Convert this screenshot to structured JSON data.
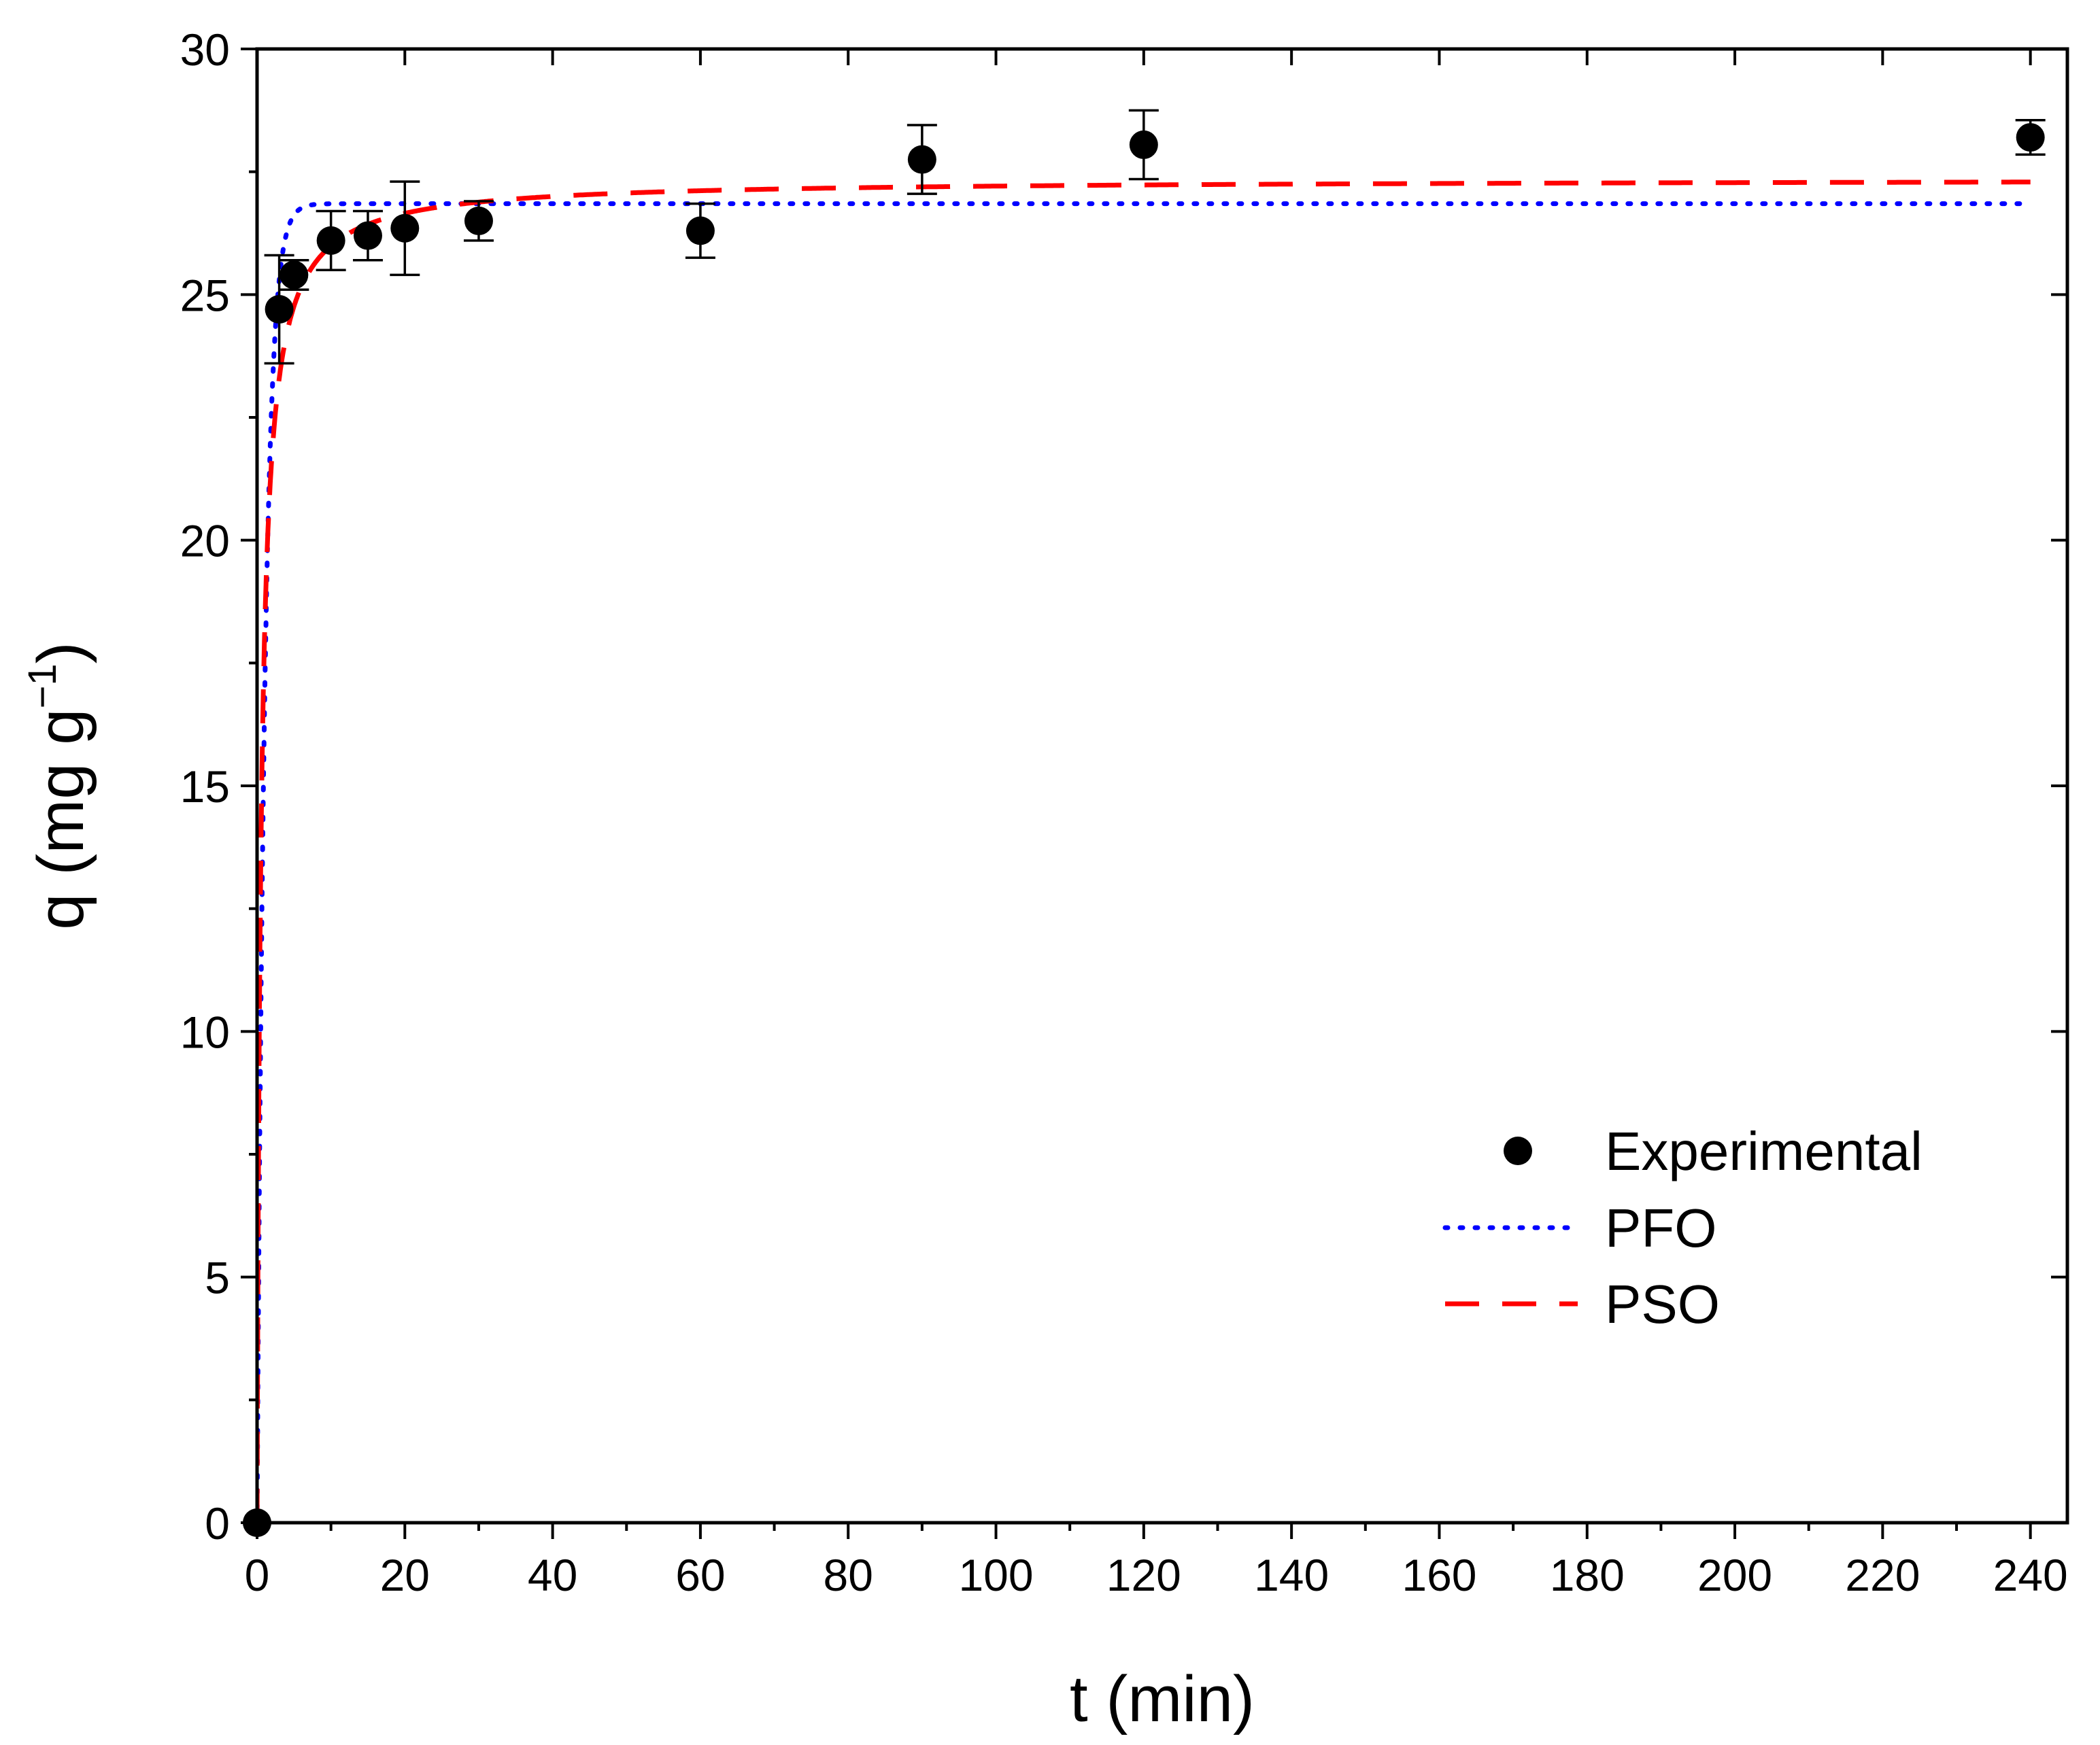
{
  "chart_data": {
    "type": "scatter",
    "title": "",
    "xlabel": "t (min)",
    "ylabel_main": "q (mg g",
    "ylabel_sup": "−1",
    "ylabel_close": ")",
    "xlim": [
      0,
      245
    ],
    "ylim": [
      0,
      30
    ],
    "xticks": [
      0,
      20,
      40,
      60,
      80,
      100,
      120,
      140,
      160,
      180,
      200,
      220,
      240
    ],
    "yticks": [
      0,
      5,
      10,
      15,
      20,
      25,
      30
    ],
    "legend_position": "right-middle",
    "series": [
      {
        "name": "Experimental",
        "kind": "points",
        "color": "#000000",
        "points": [
          {
            "x": 0,
            "y": 0,
            "err": 0
          },
          {
            "x": 3,
            "y": 24.7,
            "err": 1.1
          },
          {
            "x": 5,
            "y": 25.4,
            "err": 0.3
          },
          {
            "x": 10,
            "y": 26.1,
            "err": 0.6
          },
          {
            "x": 15,
            "y": 26.2,
            "err": 0.5
          },
          {
            "x": 20,
            "y": 26.35,
            "err": 0.95
          },
          {
            "x": 30,
            "y": 26.5,
            "err": 0.4
          },
          {
            "x": 60,
            "y": 26.3,
            "err": 0.55
          },
          {
            "x": 90,
            "y": 27.75,
            "err": 0.7
          },
          {
            "x": 120,
            "y": 28.05,
            "err": 0.7
          },
          {
            "x": 240,
            "y": 28.2,
            "err": 0.35
          }
        ]
      },
      {
        "name": "PFO",
        "kind": "model",
        "model": "pfo",
        "qe": 26.85,
        "k": 0.95,
        "color": "#0000ff",
        "dash": "dotted"
      },
      {
        "name": "PSO",
        "kind": "model",
        "model": "pso",
        "qe": 27.35,
        "k": 0.07,
        "color": "#ff0000",
        "dash": "dashed"
      }
    ]
  }
}
